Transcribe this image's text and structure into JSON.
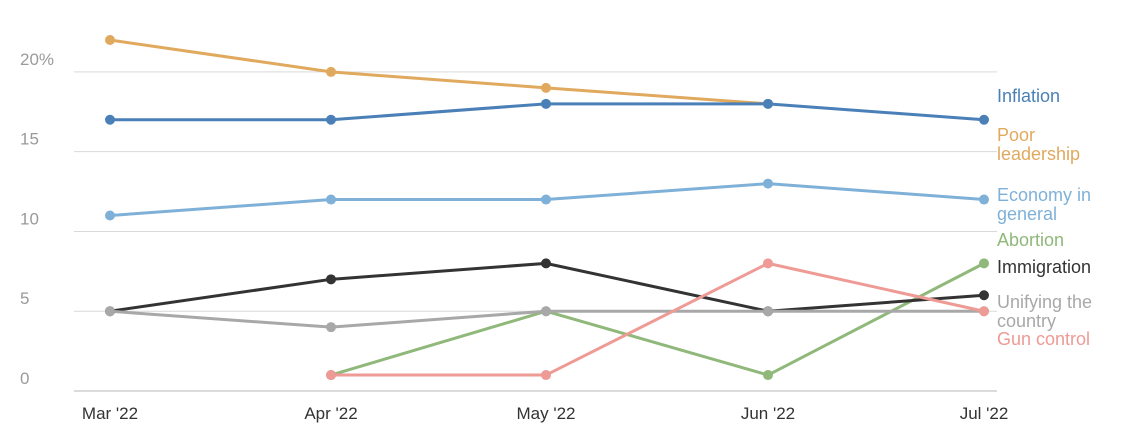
{
  "chart_data": {
    "type": "line",
    "x": [
      "Mar '22",
      "Apr '22",
      "May '22",
      "Jun '22",
      "Jul '22"
    ],
    "ylim": [
      0,
      22
    ],
    "yticks": [
      {
        "value": 0,
        "label": "0"
      },
      {
        "value": 5,
        "label": "5"
      },
      {
        "value": 10,
        "label": "10"
      },
      {
        "value": 15,
        "label": "15"
      },
      {
        "value": 20,
        "label": "20%"
      }
    ],
    "grid": "horizontal",
    "legend": "direct labels at right",
    "series": [
      {
        "name": "Poor leadership",
        "label_lines": [
          "Poor",
          "leadership"
        ],
        "color": "#e0a95e",
        "values": [
          22,
          20,
          19,
          18,
          null
        ]
      },
      {
        "name": "Inflation",
        "label_lines": [
          "Inflation"
        ],
        "color": "#4a80b7",
        "values": [
          17,
          17,
          18,
          18,
          17
        ]
      },
      {
        "name": "Economy in general",
        "label_lines": [
          "Economy in",
          "general"
        ],
        "color": "#7fb1d8",
        "values": [
          11,
          12,
          12,
          13,
          12
        ]
      },
      {
        "name": "Abortion",
        "label_lines": [
          "Abortion"
        ],
        "color": "#8fb87a",
        "values": [
          null,
          1,
          5,
          1,
          8
        ]
      },
      {
        "name": "Immigration",
        "label_lines": [
          "Immigration"
        ],
        "color": "#333333",
        "values": [
          5,
          7,
          8,
          5,
          6
        ]
      },
      {
        "name": "Unifying the country",
        "label_lines": [
          "Unifying the",
          "country"
        ],
        "color": "#a8a8a8",
        "values": [
          5,
          4,
          5,
          5,
          5
        ]
      },
      {
        "name": "Gun control",
        "label_lines": [
          "Gun control"
        ],
        "color": "#ee9a95",
        "values": [
          null,
          1,
          1,
          8,
          5
        ]
      }
    ]
  }
}
